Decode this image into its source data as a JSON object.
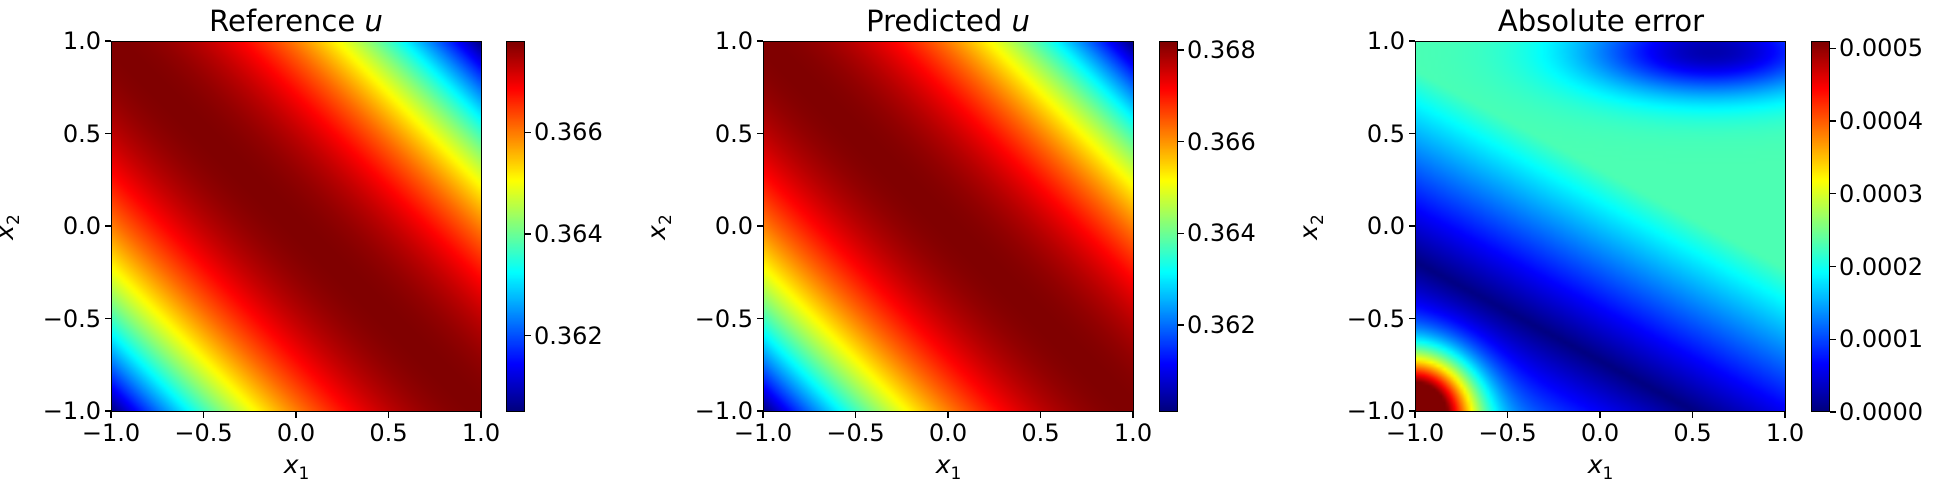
{
  "chart_data": [
    {
      "type": "heatmap",
      "title_text": "Reference ",
      "title_var": "u",
      "xlabel_var": "x",
      "xlabel_sub": "1",
      "ylabel_var": "x",
      "ylabel_sub": "2",
      "xlim": [
        -1.0,
        1.0
      ],
      "ylim": [
        -1.0,
        1.0
      ],
      "xticks": [
        "−1.0",
        "−0.5",
        "0.0",
        "0.5",
        "1.0"
      ],
      "yticks": [
        "1.0",
        "0.5",
        "0.0",
        "−0.5",
        "−1.0"
      ],
      "field": "sol",
      "cmap": "jet",
      "vmin": 0.3605,
      "vmax": 0.3678,
      "colorbar_ticks": [
        0.362,
        0.364,
        0.366
      ],
      "colorbar_labels": [
        "0.362",
        "0.364",
        "0.366"
      ]
    },
    {
      "type": "heatmap",
      "title_text": "Predicted ",
      "title_var": "u",
      "xlabel_var": "x",
      "xlabel_sub": "1",
      "ylabel_var": "x",
      "ylabel_sub": "2",
      "xlim": [
        -1.0,
        1.0
      ],
      "ylim": [
        -1.0,
        1.0
      ],
      "xticks": [
        "−1.0",
        "−0.5",
        "0.0",
        "0.5",
        "1.0"
      ],
      "yticks": [
        "1.0",
        "0.5",
        "0.0",
        "−0.5",
        "−1.0"
      ],
      "field": "sol",
      "cmap": "jet",
      "vmin": 0.3601,
      "vmax": 0.3682,
      "colorbar_ticks": [
        0.362,
        0.364,
        0.366,
        0.368
      ],
      "colorbar_labels": [
        "0.362",
        "0.364",
        "0.366",
        "0.368"
      ]
    },
    {
      "type": "heatmap",
      "title_text": "Absolute error",
      "title_var": "",
      "xlabel_var": "x",
      "xlabel_sub": "1",
      "ylabel_var": "x",
      "ylabel_sub": "2",
      "xlim": [
        -1.0,
        1.0
      ],
      "ylim": [
        -1.0,
        1.0
      ],
      "xticks": [
        "−1.0",
        "−0.5",
        "0.0",
        "0.5",
        "1.0"
      ],
      "yticks": [
        "1.0",
        "0.5",
        "0.0",
        "−0.5",
        "−1.0"
      ],
      "field": "err",
      "cmap": "jet",
      "vmin": 0.0,
      "vmax": 0.00051,
      "colorbar_ticks": [
        0.0,
        0.0001,
        0.0002,
        0.0003,
        0.0004,
        0.0005
      ],
      "colorbar_labels": [
        "0.0000",
        "0.0001",
        "0.0002",
        "0.0003",
        "0.0004",
        "0.0005"
      ]
    }
  ]
}
